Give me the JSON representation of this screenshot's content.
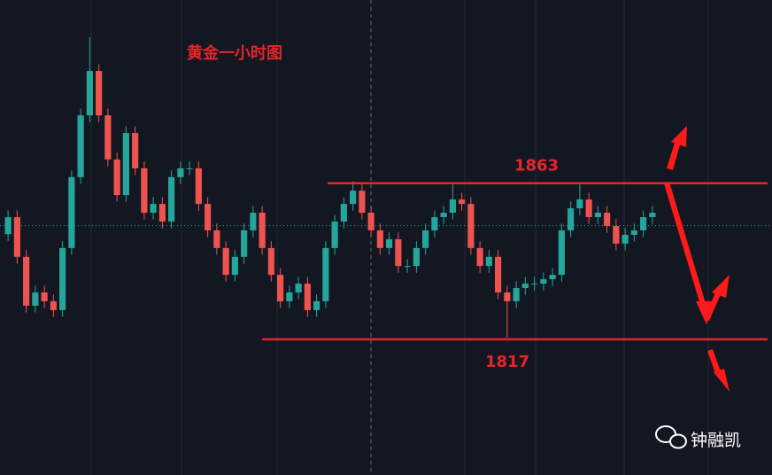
{
  "chart_data": {
    "type": "candlestick",
    "title": "黄金一小时图",
    "watermark": "钟融凯",
    "up_color": "#26a69a",
    "down_color": "#ef5350",
    "level_color": "#e8242a",
    "ylim": [
      1777,
      1917
    ],
    "levels": [
      1863,
      1817
    ],
    "current_price_line": 1850.5,
    "open": [
      1848.0,
      1853.0,
      1841.3,
      1826.9,
      1830.8,
      1828.2,
      1825.6,
      1843.9,
      1864.8,
      1883.0,
      1896.1,
      1883.0,
      1870.0,
      1859.5,
      1877.8,
      1867.4,
      1854.3,
      1856.9,
      1851.7,
      1864.8,
      1867.4,
      1867.4,
      1856.9,
      1849.1,
      1843.9,
      1836.0,
      1841.3,
      1849.1,
      1854.3,
      1843.9,
      1836.0,
      1828.2,
      1830.8,
      1833.4,
      1825.6,
      1828.2,
      1843.9,
      1851.7,
      1856.9,
      1860.8,
      1854.3,
      1849.1,
      1843.9,
      1846.5,
      1838.6,
      1838.6,
      1843.9,
      1849.1,
      1853.0,
      1854.3,
      1858.2,
      1856.9,
      1843.9,
      1838.6,
      1841.3,
      1830.8,
      1828.2,
      1832.1,
      1833.4,
      1833.4,
      1834.7,
      1836.0,
      1849.1,
      1855.6,
      1858.2,
      1853.0,
      1854.3,
      1850.4,
      1845.2,
      1847.8,
      1849.1,
      1853.0
    ],
    "high": [
      1855,
      1855,
      1843.3,
      1832.8,
      1832.8,
      1830.2,
      1845.9,
      1866.8,
      1885,
      1906,
      1898.1,
      1885,
      1872,
      1879.8,
      1879.8,
      1869.4,
      1858.9,
      1858.9,
      1866.8,
      1869.4,
      1869.4,
      1869.4,
      1858.9,
      1851.1,
      1845.9,
      1843.3,
      1851.1,
      1856.3,
      1856.3,
      1845.9,
      1838,
      1832.8,
      1835.4,
      1835.4,
      1830.2,
      1845.9,
      1853.7,
      1858.9,
      1863.5,
      1862.8,
      1856.3,
      1851.1,
      1848.5,
      1848.5,
      1840.6,
      1845.9,
      1851.1,
      1855,
      1856.3,
      1863,
      1860.2,
      1858.9,
      1845.9,
      1843.3,
      1843.3,
      1832.8,
      1834.1,
      1835.4,
      1835.4,
      1836.7,
      1838,
      1851.1,
      1857.6,
      1863,
      1860.2,
      1856.3,
      1856.3,
      1852.4,
      1849.8,
      1851.1,
      1855,
      1856.3
    ],
    "low": [
      1846,
      1839.3,
      1824.9,
      1824.9,
      1826.2,
      1823.6,
      1823.6,
      1841.9,
      1862.8,
      1881,
      1881,
      1868,
      1857.5,
      1857.5,
      1865.4,
      1852.3,
      1852.3,
      1849.7,
      1849.7,
      1862.8,
      1865.4,
      1854.9,
      1847.1,
      1841.9,
      1834,
      1834,
      1839.3,
      1847.1,
      1841.9,
      1834,
      1826.2,
      1826.2,
      1828.8,
      1823.6,
      1823.6,
      1826.2,
      1841.9,
      1849.7,
      1854.9,
      1852.3,
      1847.1,
      1841.9,
      1841.9,
      1836.6,
      1836.6,
      1836.6,
      1841.9,
      1847.1,
      1851,
      1852.3,
      1854.9,
      1841.9,
      1836.6,
      1836.6,
      1828.8,
      1817.5,
      1826.2,
      1830.1,
      1831.4,
      1831.4,
      1832.7,
      1834,
      1847.1,
      1853.6,
      1851,
      1851,
      1848.4,
      1843.2,
      1843.2,
      1845.8,
      1847.1,
      1851
    ],
    "close": [
      1853.0,
      1841.3,
      1826.9,
      1830.8,
      1828.2,
      1825.6,
      1843.9,
      1864.8,
      1883.0,
      1896.1,
      1883.0,
      1870.0,
      1859.5,
      1877.8,
      1867.4,
      1854.3,
      1856.9,
      1851.7,
      1864.8,
      1867.4,
      1867.4,
      1856.9,
      1849.1,
      1843.9,
      1836.0,
      1841.3,
      1849.1,
      1854.3,
      1843.9,
      1836.0,
      1828.2,
      1830.8,
      1833.4,
      1825.6,
      1828.2,
      1843.9,
      1851.7,
      1856.9,
      1860.8,
      1854.3,
      1849.1,
      1843.9,
      1846.5,
      1838.6,
      1838.6,
      1843.9,
      1849.1,
      1853.0,
      1854.3,
      1858.2,
      1856.9,
      1843.9,
      1838.6,
      1841.3,
      1830.8,
      1828.2,
      1832.1,
      1833.4,
      1833.4,
      1834.7,
      1836.0,
      1849.1,
      1855.6,
      1858.2,
      1853.0,
      1854.3,
      1850.4,
      1845.2,
      1847.8,
      1849.1,
      1853.0,
      1854.3
    ]
  }
}
